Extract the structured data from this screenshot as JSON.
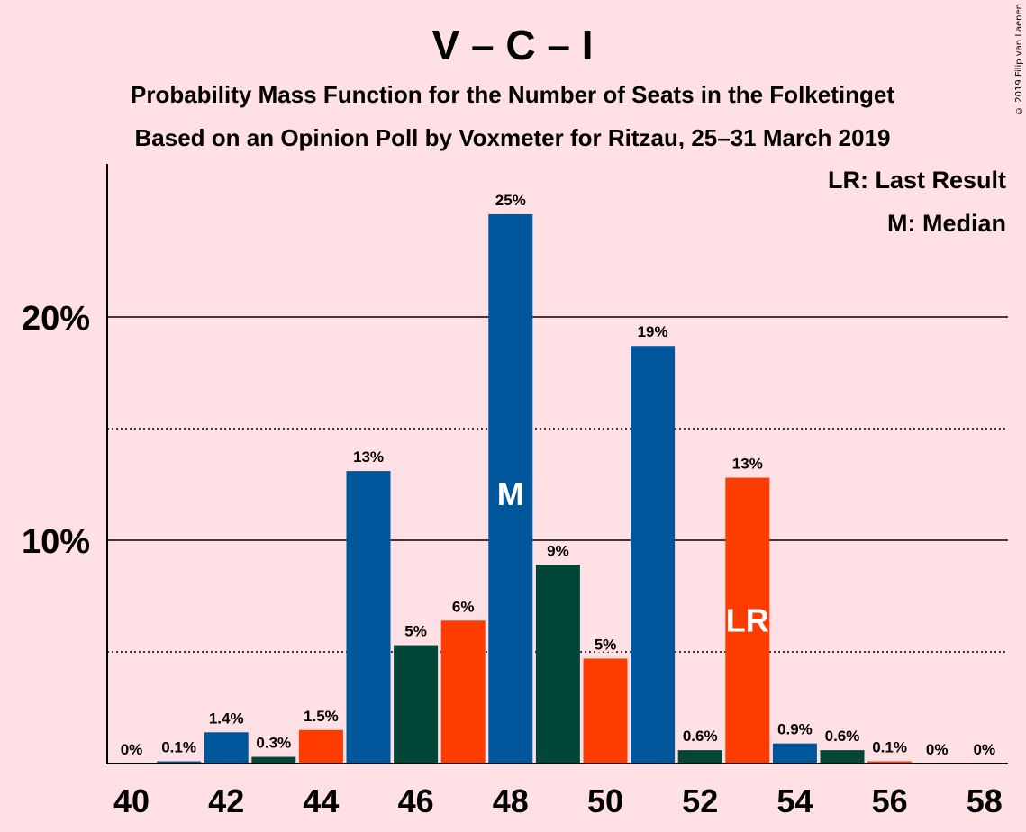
{
  "chart_data": {
    "type": "bar",
    "title": "V – C – I",
    "subtitle_1": "Probability Mass Function for the Number of Seats in the Folketinget",
    "subtitle_2": "Based on an Opinion Poll by Voxmeter for Ritzau, 25–31 March 2019",
    "legend": [
      "LR: Last Result",
      "M: Median"
    ],
    "legend_position": "top-right",
    "copyright": "© 2019 Filip van Laenen",
    "x": [
      40,
      41,
      42,
      43,
      44,
      45,
      46,
      47,
      48,
      49,
      50,
      51,
      52,
      53,
      54,
      55,
      56,
      57,
      58
    ],
    "values": [
      0,
      0.1,
      1.4,
      0.3,
      1.5,
      13.1,
      5.3,
      6.4,
      24.6,
      8.9,
      4.7,
      18.7,
      0.6,
      12.8,
      0.9,
      0.6,
      0.1,
      0,
      0
    ],
    "labels": [
      "0%",
      "0.1%",
      "1.4%",
      "0.3%",
      "1.5%",
      "13%",
      "5%",
      "6%",
      "25%",
      "9%",
      "5%",
      "19%",
      "0.6%",
      "13%",
      "0.9%",
      "0.6%",
      "0.1%",
      "0%",
      "0%"
    ],
    "colors": [
      "#00569a",
      "#00569a",
      "#00569a",
      "#024638",
      "#ff3c00",
      "#00569a",
      "#024638",
      "#ff3c00",
      "#00569a",
      "#024638",
      "#ff3c00",
      "#00569a",
      "#024638",
      "#ff3c00",
      "#00569a",
      "#024638",
      "#ff3c00",
      "#00569a",
      "#00569a"
    ],
    "median_seat": 48,
    "median_mark": "M",
    "last_result_seat": 53,
    "last_result_mark": "LR",
    "x_ticks": [
      40,
      42,
      44,
      46,
      48,
      50,
      52,
      54,
      56,
      58
    ],
    "y_ticks": [
      {
        "value": 10,
        "label": "10%"
      },
      {
        "value": 20,
        "label": "20%"
      }
    ],
    "y_minor_ticks": [
      5,
      15
    ],
    "ylim": [
      0,
      26.8
    ]
  }
}
